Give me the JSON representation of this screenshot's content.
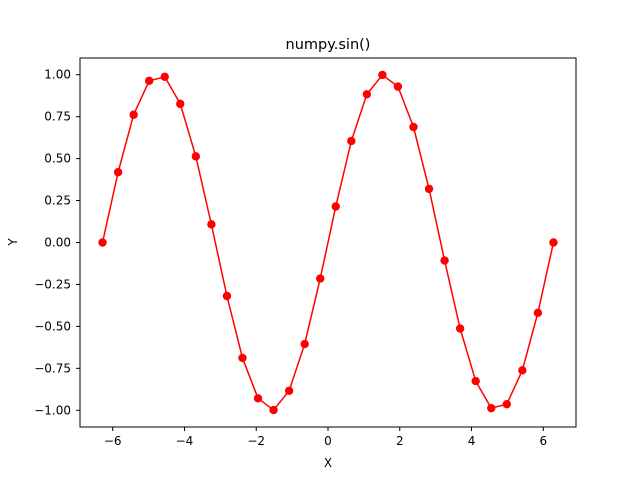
{
  "chart_data": {
    "type": "line",
    "title": "numpy.sin()",
    "xlabel": "X",
    "ylabel": "Y",
    "xlim": [
      -6.9115,
      6.9115
    ],
    "ylim": [
      -1.0997,
      1.0997
    ],
    "xticks": [
      -6,
      -4,
      -2,
      0,
      2,
      4,
      6
    ],
    "xtick_labels": [
      "−6",
      "−4",
      "−2",
      "0",
      "2",
      "4",
      "6"
    ],
    "yticks": [
      -1.0,
      -0.75,
      -0.5,
      -0.25,
      0.0,
      0.25,
      0.5,
      0.75,
      1.0
    ],
    "ytick_labels": [
      "−1.00",
      "−0.75",
      "−0.50",
      "−0.25",
      "0.00",
      "0.25",
      "0.50",
      "0.75",
      "1.00"
    ],
    "grid": false,
    "series": [
      {
        "color": "#ff0000",
        "marker": "circle",
        "x": [
          -6.2832,
          -5.8499,
          -5.4166,
          -4.9833,
          -4.55,
          -4.1167,
          -3.6834,
          -3.2501,
          -2.8168,
          -2.3835,
          -1.9502,
          -1.5169,
          -1.0836,
          -0.6503,
          -0.217,
          0.2163,
          0.6496,
          1.0829,
          1.5162,
          1.9495,
          2.3828,
          2.8161,
          3.2494,
          3.6827,
          4.116,
          4.5493,
          4.9826,
          5.4159,
          5.8492,
          6.2832
        ],
        "y": [
          0.0,
          0.4187,
          0.7616,
          0.9636,
          0.9877,
          0.8263,
          0.5133,
          0.1081,
          -0.3189,
          -0.688,
          -0.9288,
          -0.9986,
          -0.8838,
          -0.6053,
          -0.2151,
          0.2146,
          0.6049,
          0.8835,
          0.9986,
          0.9291,
          0.6884,
          0.3195,
          -0.1075,
          -0.5127,
          -0.826,
          -0.9874,
          -0.9637,
          -0.762,
          -0.4192,
          0.0
        ]
      }
    ]
  }
}
